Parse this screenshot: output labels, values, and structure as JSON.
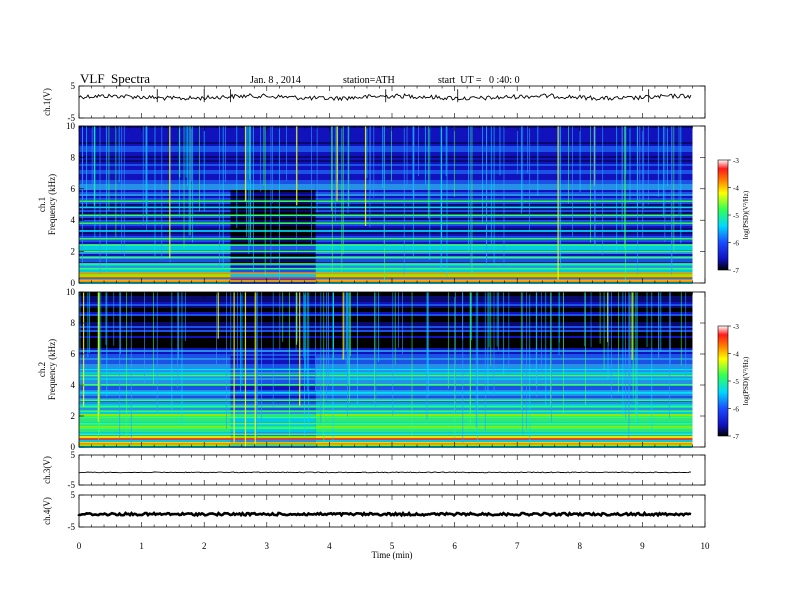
{
  "header": {
    "title": "VLF  Spectra",
    "date": "Jan. 8 , 2014",
    "station": "station=ATH",
    "start": "start  UT =   0 :40: 0"
  },
  "colors": {
    "colormap": [
      "#000000",
      "#1a1aff",
      "#2b8cff",
      "#00e5ff",
      "#33ff66",
      "#ffff00",
      "#ff8800",
      "#ff1a1a",
      "#ffffff"
    ]
  },
  "chart_data": [
    {
      "type": "line",
      "id": "ch1-waveform",
      "ylabel": "ch.1(V)",
      "yticks": [
        "5",
        "-5"
      ],
      "ylim": [
        -5,
        5
      ],
      "xlim": [
        0,
        10
      ],
      "mean_level": 1.5,
      "spikes_x": [
        1.25,
        2.0,
        2.42,
        4.9,
        6.05,
        9.1
      ]
    },
    {
      "type": "heatmap",
      "id": "ch1-spectrogram",
      "ylabel": "ch.1\nFrequency  (kHz)",
      "yticks": [
        "0",
        "2",
        "4",
        "6",
        "8",
        "10"
      ],
      "ylim": [
        0,
        10
      ],
      "xlim": [
        0,
        9.8
      ],
      "colorbar": {
        "label": "log(PSD)(V²/Hz)",
        "ticks": [
          "-3",
          "-4",
          "-5",
          "-6",
          "-7"
        ],
        "range": [
          -7,
          -3
        ]
      },
      "bands_khz": [
        0.1,
        0.3,
        0.6,
        0.9,
        1.2,
        1.6,
        2.0,
        2.4,
        2.8,
        3.3,
        3.8,
        4.3,
        4.8,
        5.2
      ],
      "quiet_segment_min": [
        2.42,
        3.78
      ]
    },
    {
      "type": "heatmap",
      "id": "ch2-spectrogram",
      "ylabel": "ch.2\nFrequency  (kHz)",
      "yticks": [
        "0",
        "2",
        "4",
        "6",
        "8",
        "10"
      ],
      "ylim": [
        0,
        10
      ],
      "xlim": [
        0,
        9.8
      ],
      "colorbar": {
        "label": "log(PSD)(V²/Hz)",
        "ticks": [
          "-3",
          "-4",
          "-5",
          "-6",
          "-7"
        ],
        "range": [
          -7,
          -3
        ]
      },
      "bands_khz": [
        0.2,
        0.5,
        0.8,
        1.2,
        1.5,
        1.9,
        2.3,
        2.6,
        3.0,
        3.5,
        4.0,
        4.6,
        5.0
      ],
      "quiet_segment_min": [
        2.42,
        3.78
      ]
    },
    {
      "type": "line",
      "id": "ch3-waveform",
      "ylabel": "ch.3(V)",
      "yticks": [
        "5",
        "-5"
      ],
      "ylim": [
        -5,
        5
      ],
      "xlim": [
        0,
        10
      ],
      "mean_level": -0.8
    },
    {
      "type": "line",
      "id": "ch4-waveform",
      "ylabel": "ch.4(V)",
      "yticks": [
        "5",
        "-5"
      ],
      "ylim": [
        -5,
        5
      ],
      "xlim": [
        0,
        10
      ],
      "mean_level": -1.0
    }
  ],
  "xaxis": {
    "label": "Time  (min)",
    "ticks": [
      0,
      1,
      2,
      3,
      4,
      5,
      6,
      7,
      8,
      9,
      10
    ],
    "xlim": [
      0,
      10
    ]
  }
}
